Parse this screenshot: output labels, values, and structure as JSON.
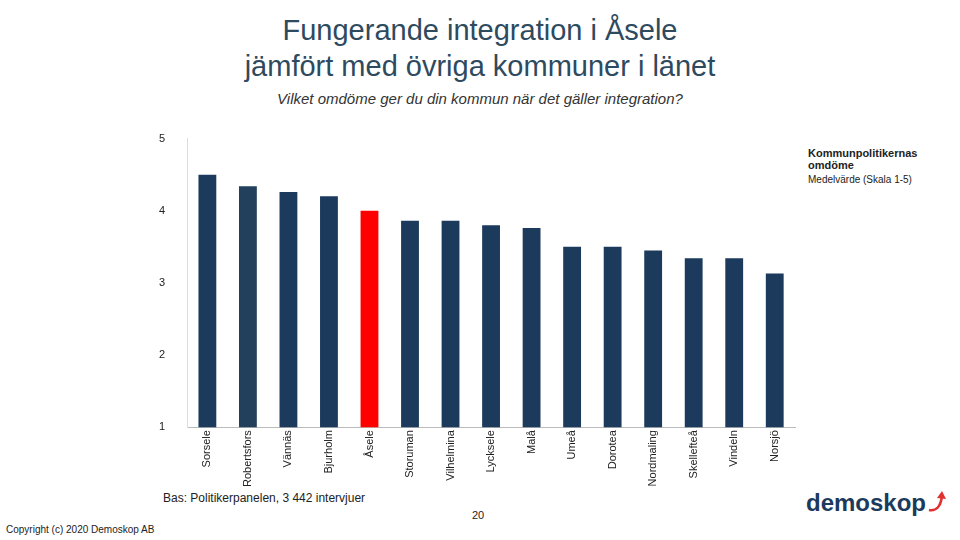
{
  "chart_data": {
    "type": "bar",
    "title": [
      "Fungerande integration i Åsele",
      "jämfört med övriga kommuner i länet"
    ],
    "subtitle": "Vilket omdöme ger du din kommun när det gäller integration?",
    "categories": [
      "Sorsele",
      "Robertsfors",
      "Vännäs",
      "Bjurholm",
      "Åsele",
      "Storuman",
      "Vilhelmina",
      "Lycksele",
      "Malå",
      "Umeå",
      "Dorotea",
      "Nordmaling",
      "Skellefteå",
      "Vindeln",
      "Norsjö"
    ],
    "values": [
      4.5,
      4.34,
      4.26,
      4.2,
      4.0,
      3.86,
      3.86,
      3.8,
      3.76,
      3.5,
      3.5,
      3.45,
      3.34,
      3.34,
      3.13
    ],
    "colors": [
      "#1b3a5c",
      "#22405c",
      "#1b3a5c",
      "#1b3a5c",
      "#ff0000",
      "#1b3a5c",
      "#1b3a5c",
      "#1b3a5c",
      "#1b3a5c",
      "#1b3a5c",
      "#1b3a5c",
      "#1b3a5c",
      "#1b3a5c",
      "#1b3a5c",
      "#1b3a5c"
    ],
    "ylim": [
      1,
      5
    ],
    "yticks": [
      1,
      2,
      3,
      4,
      5
    ],
    "grid": false,
    "annotations": [
      "Kommunpolitikernas omdöme",
      "Medelvärde (Skala 1-5)",
      "Bas: Politikerpanelen, 3 442 intervjuer",
      "20",
      "Copyright (c) 2020 Demoskop AB",
      "demoskop"
    ]
  }
}
